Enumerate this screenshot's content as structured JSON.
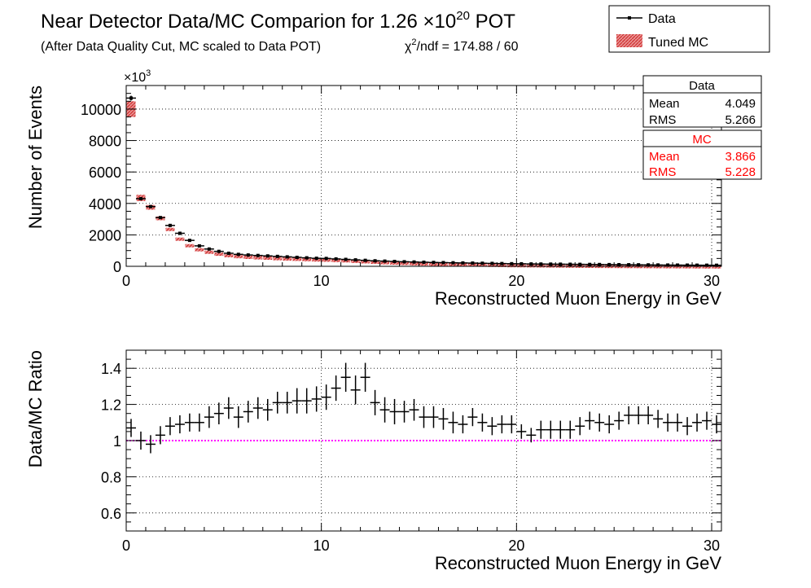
{
  "title": {
    "main": "Near Detector Data/MC Comparion for 1.26 ×10",
    "exp": "20",
    "suffix": " POT",
    "subtitle": "(After Data Quality Cut, MC scaled to Data POT)",
    "chi_prefix": "χ",
    "chi_exp": "2",
    "chi_rest": "/ndf = 174.88 / 60"
  },
  "legend": {
    "data_label": "Data",
    "mc_label": "Tuned MC",
    "position": "top-right"
  },
  "stats": {
    "data": {
      "title": "Data",
      "mean_label": "Mean",
      "mean": "4.049",
      "rms_label": "RMS",
      "rms": "5.266"
    },
    "mc": {
      "title": "MC",
      "mean_label": "Mean",
      "mean": "3.866",
      "rms_label": "RMS",
      "rms": "5.228"
    }
  },
  "colors": {
    "data": "#000000",
    "mc_fill": "#e88f8f",
    "mc_hatch": "#cc2222",
    "stats_mc_text": "#ff0000",
    "ratio_line": "#ff00ff",
    "grid": "#000000"
  },
  "chart_data": [
    {
      "type": "bar",
      "name": "top",
      "xlabel": "Reconstructed Muon Energy in GeV",
      "ylabel": "Number of Events",
      "y_multiplier": "×10",
      "y_multiplier_exp": "3",
      "xlim": [
        0,
        30.5
      ],
      "ylim": [
        0,
        11500
      ],
      "xticks": [
        0,
        10,
        20,
        30
      ],
      "yticks": [
        0,
        2000,
        4000,
        6000,
        8000,
        10000
      ],
      "grid": true,
      "bin_width": 0.5,
      "x": [
        0.25,
        0.75,
        1.25,
        1.75,
        2.25,
        2.75,
        3.25,
        3.75,
        4.25,
        4.75,
        5.25,
        5.75,
        6.25,
        6.75,
        7.25,
        7.75,
        8.25,
        8.75,
        9.25,
        9.75,
        10.25,
        10.75,
        11.25,
        11.75,
        12.25,
        12.75,
        13.25,
        13.75,
        14.25,
        14.75,
        15.25,
        15.75,
        16.25,
        16.75,
        17.25,
        17.75,
        18.25,
        18.75,
        19.25,
        19.75,
        20.25,
        20.75,
        21.25,
        21.75,
        22.25,
        22.75,
        23.25,
        23.75,
        24.25,
        24.75,
        25.25,
        25.75,
        26.25,
        26.75,
        27.25,
        27.75,
        28.25,
        28.75,
        29.25,
        29.75,
        30.25
      ],
      "series": [
        {
          "name": "Data",
          "values": [
            10700,
            4300,
            3800,
            3100,
            2600,
            2100,
            1650,
            1300,
            1100,
            950,
            830,
            760,
            720,
            690,
            660,
            630,
            600,
            570,
            540,
            510,
            500,
            470,
            440,
            410,
            380,
            350,
            330,
            310,
            290,
            275,
            260,
            245,
            235,
            225,
            215,
            205,
            195,
            185,
            175,
            165,
            160,
            150,
            145,
            140,
            135,
            130,
            125,
            120,
            115,
            110,
            105,
            100,
            95,
            90,
            85,
            80,
            78,
            75,
            72,
            70,
            68
          ],
          "errors": [
            150,
            90,
            80,
            70,
            60,
            55,
            50,
            45,
            40,
            35,
            32,
            30,
            28,
            27,
            26,
            25,
            24,
            24,
            23,
            22,
            22,
            21,
            21,
            20,
            19,
            18,
            18,
            17,
            17,
            16,
            16,
            15,
            15,
            15,
            14,
            14,
            14,
            13,
            13,
            13,
            12,
            12,
            12,
            12,
            11,
            11,
            11,
            11,
            11,
            10,
            10,
            10,
            10,
            9,
            9,
            9,
            9,
            9,
            8,
            8,
            8
          ]
        },
        {
          "name": "Tuned MC",
          "values": [
            10000,
            4350,
            3750,
            3050,
            2350,
            1750,
            1350,
            1100,
            950,
            830,
            740,
            680,
            640,
            610,
            590,
            560,
            540,
            520,
            500,
            480,
            470,
            450,
            430,
            400,
            370,
            340,
            310,
            290,
            270,
            250,
            235,
            220,
            205,
            195,
            185,
            175,
            165,
            155,
            145,
            135,
            130,
            125,
            120,
            115,
            110,
            105,
            100,
            95,
            90,
            88,
            85,
            82,
            80,
            78,
            75,
            72,
            70,
            68,
            65,
            62,
            60
          ],
          "errors": [
            500,
            200,
            150,
            120,
            100,
            80,
            65,
            55,
            50,
            45,
            40,
            38,
            36,
            34,
            32,
            30,
            29,
            28,
            27,
            26,
            25,
            24,
            23,
            22,
            21,
            20,
            19,
            18,
            17,
            16,
            15,
            15,
            14,
            13,
            13,
            12,
            12,
            11,
            11,
            10,
            10,
            10,
            9,
            9,
            9,
            8,
            8,
            8,
            8,
            7,
            7,
            7,
            7,
            6,
            6,
            6,
            6,
            6,
            5,
            5,
            5
          ]
        }
      ]
    },
    {
      "type": "scatter",
      "name": "ratio",
      "xlabel": "Reconstructed Muon Energy in GeV",
      "ylabel": "Data/MC Ratio",
      "xlim": [
        0,
        30.5
      ],
      "ylim": [
        0.5,
        1.5
      ],
      "xticks": [
        0,
        10,
        20,
        30
      ],
      "yticks": [
        0.6,
        0.8,
        1.0,
        1.2,
        1.4
      ],
      "ytick_labels": [
        "0.6",
        "0.8",
        "1",
        "1.2",
        "1.4"
      ],
      "reference_line": 1.0,
      "grid": true,
      "bin_width": 0.5,
      "x": [
        0.25,
        0.75,
        1.25,
        1.75,
        2.25,
        2.75,
        3.25,
        3.75,
        4.25,
        4.75,
        5.25,
        5.75,
        6.25,
        6.75,
        7.25,
        7.75,
        8.25,
        8.75,
        9.25,
        9.75,
        10.25,
        10.75,
        11.25,
        11.75,
        12.25,
        12.75,
        13.25,
        13.75,
        14.25,
        14.75,
        15.25,
        15.75,
        16.25,
        16.75,
        17.25,
        17.75,
        18.25,
        18.75,
        19.25,
        19.75,
        20.25,
        20.75,
        21.25,
        21.75,
        22.25,
        22.75,
        23.25,
        23.75,
        24.25,
        24.75,
        25.25,
        25.75,
        26.25,
        26.75,
        27.25,
        27.75,
        28.25,
        28.75,
        29.25,
        29.75,
        30.25
      ],
      "series": [
        {
          "name": "Data",
          "values": [
            1.07,
            1.0,
            0.98,
            1.03,
            1.08,
            1.09,
            1.1,
            1.1,
            1.13,
            1.15,
            1.18,
            1.13,
            1.16,
            1.18,
            1.17,
            1.21,
            1.21,
            1.22,
            1.22,
            1.23,
            1.24,
            1.29,
            1.35,
            1.28,
            1.35,
            1.21,
            1.17,
            1.16,
            1.16,
            1.17,
            1.13,
            1.13,
            1.12,
            1.1,
            1.09,
            1.13,
            1.1,
            1.08,
            1.09,
            1.09,
            1.05,
            1.03,
            1.06,
            1.06,
            1.06,
            1.06,
            1.08,
            1.11,
            1.1,
            1.09,
            1.11,
            1.14,
            1.14,
            1.14,
            1.12,
            1.1,
            1.1,
            1.08,
            1.1,
            1.11,
            1.09
          ],
          "errors": [
            0.05,
            0.05,
            0.05,
            0.05,
            0.05,
            0.05,
            0.05,
            0.05,
            0.06,
            0.06,
            0.06,
            0.06,
            0.06,
            0.06,
            0.06,
            0.06,
            0.06,
            0.07,
            0.07,
            0.07,
            0.07,
            0.07,
            0.08,
            0.08,
            0.08,
            0.07,
            0.07,
            0.07,
            0.06,
            0.06,
            0.06,
            0.06,
            0.06,
            0.06,
            0.05,
            0.05,
            0.05,
            0.05,
            0.05,
            0.05,
            0.04,
            0.04,
            0.05,
            0.05,
            0.05,
            0.05,
            0.05,
            0.05,
            0.05,
            0.05,
            0.05,
            0.05,
            0.05,
            0.05,
            0.05,
            0.05,
            0.05,
            0.05,
            0.05,
            0.05,
            0.05
          ]
        }
      ]
    }
  ]
}
